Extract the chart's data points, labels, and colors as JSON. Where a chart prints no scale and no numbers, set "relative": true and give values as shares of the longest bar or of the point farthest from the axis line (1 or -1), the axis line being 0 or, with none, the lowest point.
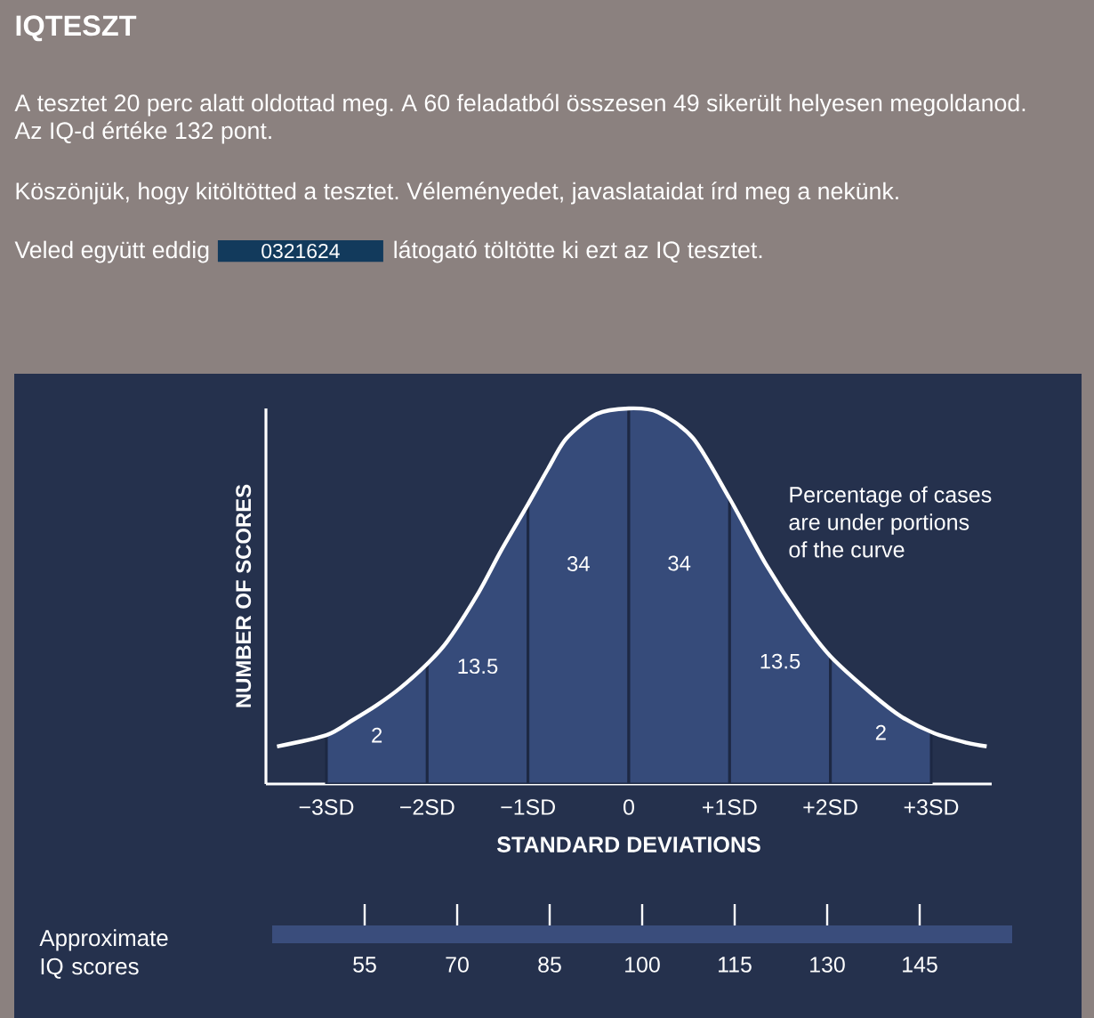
{
  "chart_data": {
    "type": "line",
    "title": "IQTESZT",
    "annotations": [
      "A tesztet 20 perc alatt oldottad meg. A 60 feladatból összesen 49 sikerült helyesen megoldanod.",
      "Az IQ-d értéke 132 pont.",
      "Köszönjük, hogy kitöltötted a tesztet. Véleményedet, javaslataidat írd meg a nekünk.",
      "Veled együtt eddig",
      "0321624",
      "látogató töltötte ki ezt az IQ tesztet.",
      "Percentage of cases are under portions of the curve"
    ],
    "xlabel": "STANDARD DEVIATIONS",
    "ylabel": "NUMBER OF SCORES",
    "x2label": "Approximate IQ scores",
    "relative": true,
    "xlim": [
      -3.6,
      3.6
    ],
    "xticks": [
      {
        "value": -3,
        "label": "−3SD"
      },
      {
        "value": -2,
        "label": "−2SD"
      },
      {
        "value": -1,
        "label": "−1SD"
      },
      0,
      {
        "value": 1,
        "label": "+1SD"
      },
      {
        "value": 2,
        "label": "+2SD"
      },
      {
        "value": 3,
        "label": "+3SD"
      }
    ],
    "x2lim": [
      40,
      160
    ],
    "x2ticks": [
      55,
      70,
      85,
      100,
      115,
      130,
      145
    ],
    "series": [
      {
        "color": "#ffffff",
        "x": [
          -3.49,
          -3.0,
          -2.74,
          -2.5,
          -2.27,
          -2.0,
          -1.8,
          -1.49,
          -1.27,
          -1.0,
          -0.8,
          -0.62,
          -0.32,
          0,
          0.29,
          0.64,
          1.0,
          1.36,
          1.71,
          2.0,
          2.41,
          2.7,
          3.03,
          3.35,
          3.55
        ],
        "values": [
          0.1,
          0.13,
          0.17,
          0.21,
          0.255,
          0.32,
          0.38,
          0.51,
          0.62,
          0.745,
          0.84,
          0.92,
          0.985,
          1,
          0.99,
          0.92,
          0.76,
          0.585,
          0.44,
          0.34,
          0.24,
          0.18,
          0.135,
          0.11,
          0.1
        ]
      }
    ],
    "bands": [
      {
        "axis": "x",
        "from": -3,
        "to": -2,
        "label": "2",
        "color": "#364b7a"
      },
      {
        "axis": "x",
        "from": -2,
        "to": -1,
        "label": "13.5",
        "color": "#364b7a"
      },
      {
        "axis": "x",
        "from": -1,
        "to": 0,
        "label": "34",
        "color": "#364b7a"
      },
      {
        "axis": "x",
        "from": 0,
        "to": 1,
        "label": "34",
        "color": "#364b7a"
      },
      {
        "axis": "x",
        "from": 1,
        "to": 2,
        "label": "13.5",
        "color": "#364b7a"
      },
      {
        "axis": "x",
        "from": 2,
        "to": 3,
        "label": "2",
        "color": "#364b7a"
      }
    ]
  }
}
